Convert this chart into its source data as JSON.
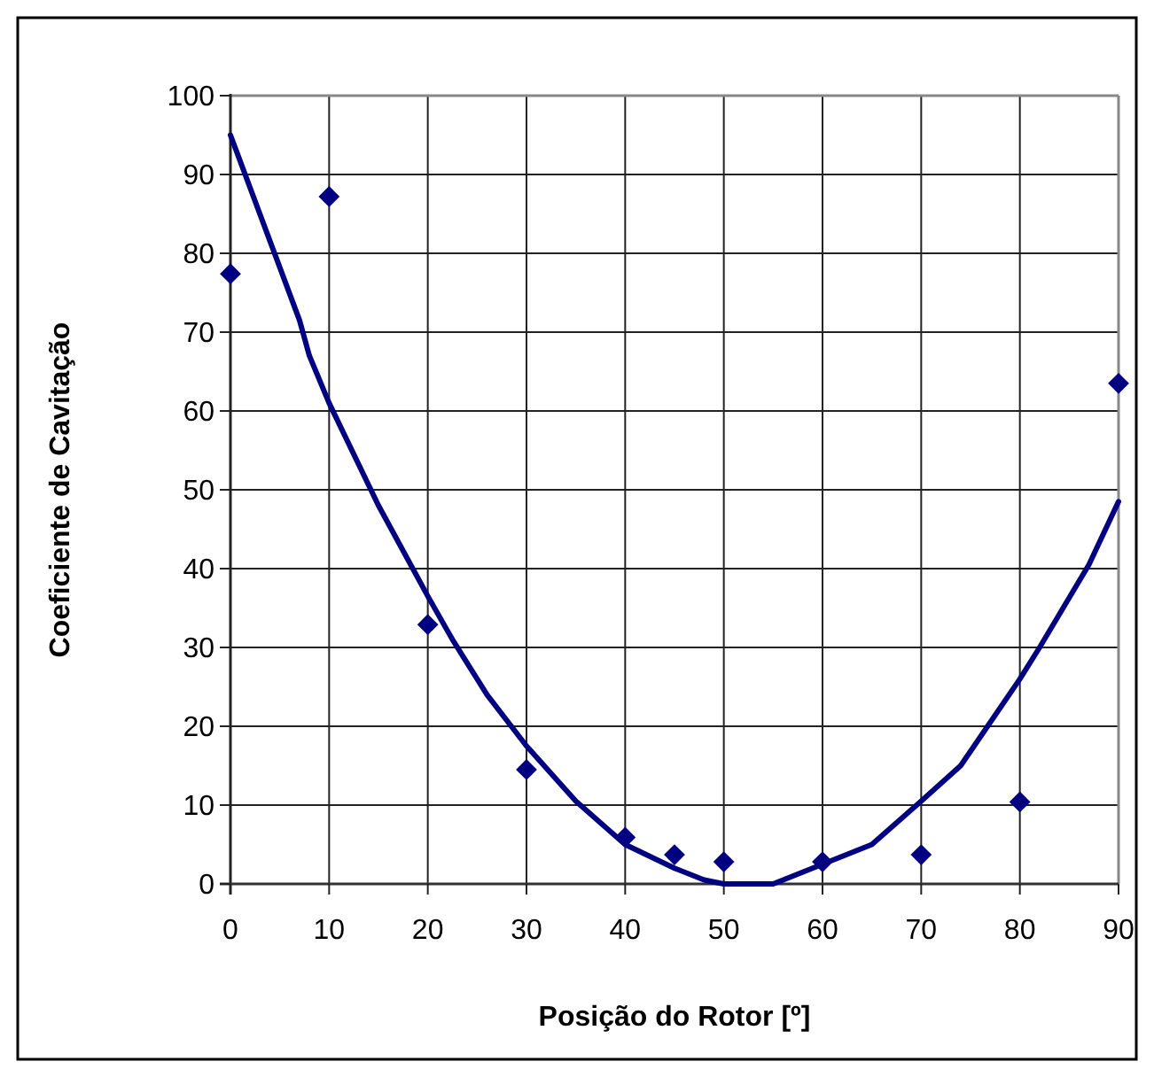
{
  "chart_data": {
    "type": "scatter",
    "xlabel": "Posição do Rotor [º]",
    "ylabel": "Coeficiente de Cavitação",
    "x": [
      0,
      10,
      20,
      30,
      40,
      45,
      50,
      60,
      70,
      80,
      90
    ],
    "series": [
      {
        "color": "#000080",
        "marker": "diamond",
        "values": [
          77.4,
          87.2,
          32.9,
          14.5,
          5.9,
          3.7,
          2.8,
          2.8,
          3.7,
          10.4,
          63.5
        ]
      },
      {
        "type": "line",
        "color": "#000080",
        "marker": "none",
        "line_style": "solid",
        "x": [
          0,
          7,
          8,
          10,
          15,
          20,
          22.5,
          24,
          26,
          30,
          35,
          40,
          45,
          48,
          50,
          55,
          60,
          65,
          70,
          74,
          80,
          82,
          87,
          90
        ],
        "values": [
          95,
          71.5,
          67,
          61,
          48,
          36.5,
          31,
          28,
          24,
          17.5,
          10.5,
          5,
          2,
          0.5,
          0,
          0,
          2.5,
          5,
          10.5,
          15,
          26,
          30,
          40.5,
          48.5
        ]
      }
    ],
    "xlim": [
      0,
      90
    ],
    "ylim": [
      0,
      100
    ],
    "xticks": [
      0,
      10,
      20,
      30,
      40,
      50,
      60,
      70,
      80,
      90
    ],
    "yticks": [
      0,
      10,
      20,
      30,
      40,
      50,
      60,
      70,
      80,
      90,
      100
    ],
    "grid": true
  }
}
